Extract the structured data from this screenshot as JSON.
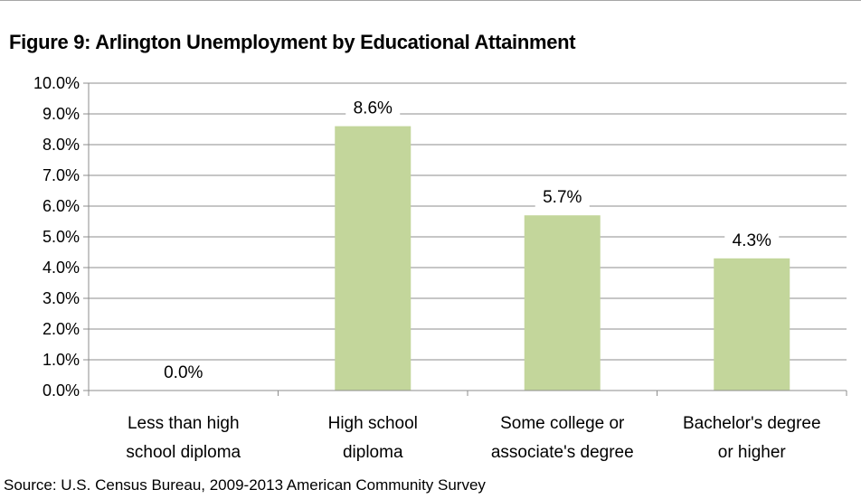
{
  "chart_data": {
    "type": "bar",
    "title": "Figure 9: Arlington Unemployment by Educational Attainment",
    "categories": [
      [
        "Less than high",
        "school diploma"
      ],
      [
        "High school",
        "diploma"
      ],
      [
        "Some college or",
        "associate's degree"
      ],
      [
        "Bachelor's degree",
        "or higher"
      ]
    ],
    "values": [
      0.0,
      8.6,
      5.7,
      4.3
    ],
    "data_labels": [
      "0.0%",
      "8.6%",
      "5.7%",
      "4.3%"
    ],
    "yticks": [
      "0.0%",
      "1.0%",
      "2.0%",
      "3.0%",
      "4.0%",
      "5.0%",
      "6.0%",
      "7.0%",
      "8.0%",
      "9.0%",
      "10.0%"
    ],
    "ylim": [
      0,
      10
    ],
    "grid": true,
    "bar_color": "#c3d69b",
    "source": "Source: U.S. Census Bureau, 2009-2013 American Community Survey"
  }
}
